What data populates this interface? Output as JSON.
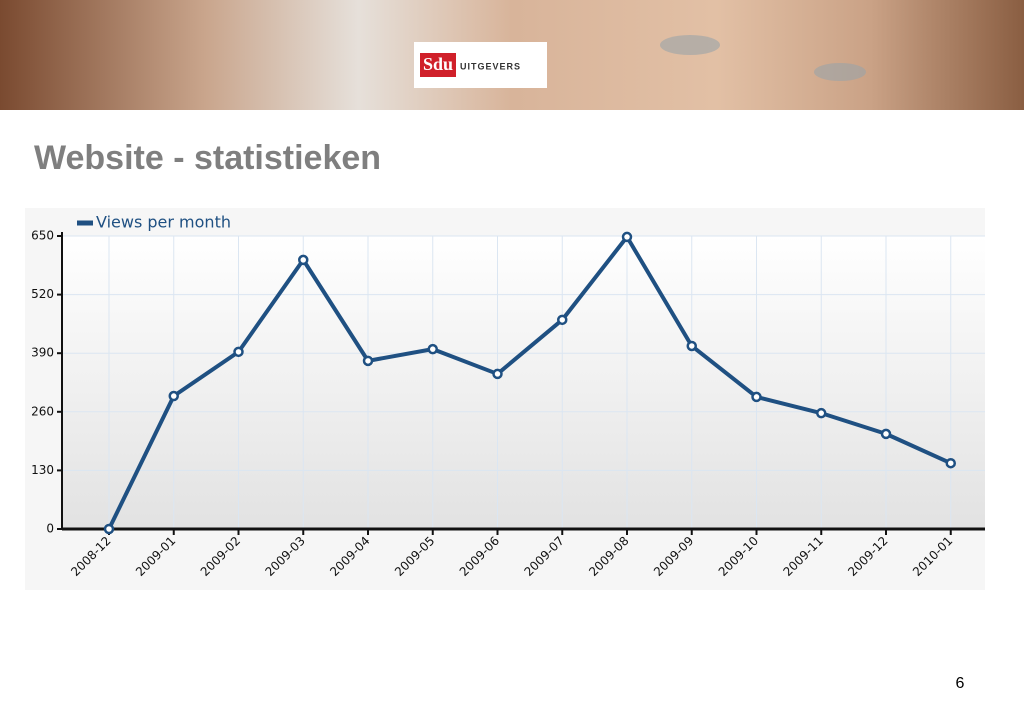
{
  "header": {
    "logo_brand": "Sdu",
    "logo_text": "UITGEVERS"
  },
  "title": "Website - statistieken",
  "page_number": "6",
  "chart_data": {
    "type": "line",
    "categories": [
      "2008-12",
      "2009-01",
      "2009-02",
      "2009-03",
      "2009-04",
      "2009-05",
      "2009-06",
      "2009-07",
      "2009-08",
      "2009-09",
      "2009-10",
      "2009-11",
      "2009-12",
      "2010-01"
    ],
    "series": [
      {
        "name": "Views per month",
        "color": "#1f5082",
        "values": [
          0,
          295,
          393,
          597,
          373,
          399,
          344,
          464,
          648,
          406,
          293,
          257,
          211,
          146
        ]
      }
    ],
    "ylim": [
      0,
      650
    ],
    "yticks": [
      0,
      130,
      260,
      390,
      520,
      650
    ],
    "grid": true,
    "legend": "top-left"
  }
}
